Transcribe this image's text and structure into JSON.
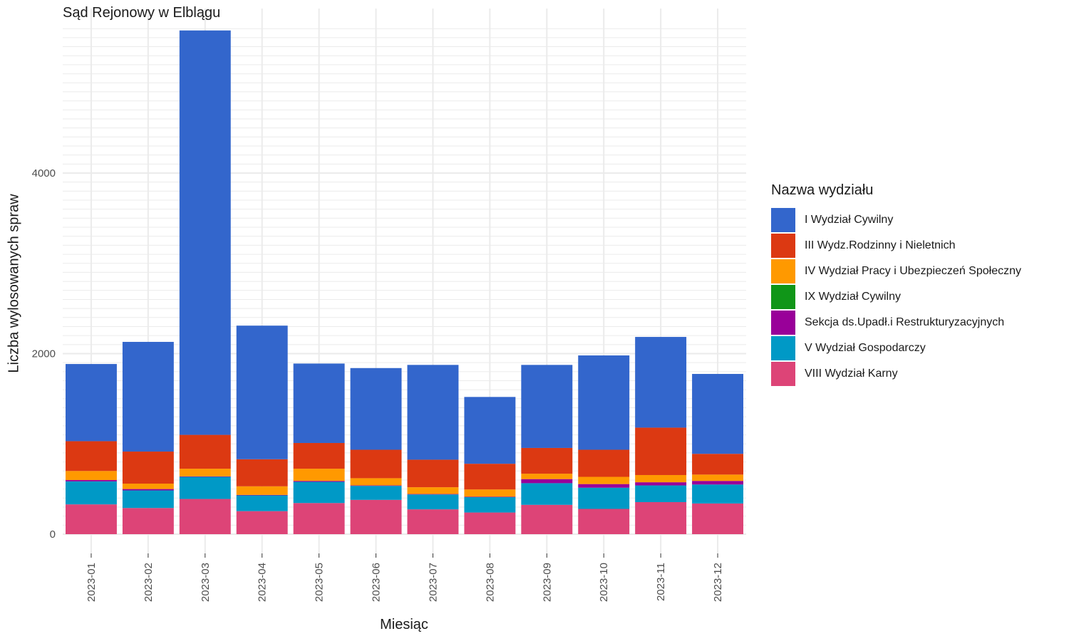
{
  "chart_data": {
    "type": "bar",
    "stacked": true,
    "title": "Sąd Rejonowy w Elblągu",
    "xlabel": "Miesiąc",
    "ylabel": "Liczba wylosowanych spraw",
    "ylim": [
      0,
      5600
    ],
    "yticks": [
      0,
      2000,
      4000
    ],
    "grid": true,
    "legend_title": "Nazwa wydziału",
    "legend_position": "right",
    "categories": [
      "2023-01",
      "2023-02",
      "2023-03",
      "2023-04",
      "2023-05",
      "2023-06",
      "2023-07",
      "2023-08",
      "2023-09",
      "2023-10",
      "2023-11",
      "2023-12"
    ],
    "series": [
      {
        "name": "VIII Wydział Karny",
        "color": "#DD4477",
        "values": [
          330,
          290,
          390,
          255,
          345,
          380,
          275,
          240,
          325,
          280,
          355,
          340
        ]
      },
      {
        "name": "V Wydział Gospodarczy",
        "color": "#0099C6",
        "values": [
          255,
          195,
          245,
          175,
          235,
          155,
          165,
          170,
          240,
          235,
          185,
          210
        ]
      },
      {
        "name": "Sekcja ds.Upadł.i Restrukturyzacyjnych",
        "color": "#990099",
        "values": [
          15,
          15,
          5,
          5,
          10,
          5,
          5,
          5,
          45,
          40,
          35,
          40
        ]
      },
      {
        "name": "IX Wydział Cywilny",
        "color": "#109618",
        "values": [
          0,
          0,
          0,
          0,
          0,
          0,
          0,
          0,
          0,
          0,
          0,
          0
        ]
      },
      {
        "name": "IV Wydział Pracy i Ubezpieczeń Społeczny",
        "color": "#FF9900",
        "values": [
          100,
          60,
          85,
          95,
          135,
          80,
          75,
          80,
          60,
          80,
          80,
          70
        ]
      },
      {
        "name": "III Wydz.Rodzinny i Nieletnich",
        "color": "#DC3912",
        "values": [
          330,
          355,
          375,
          300,
          285,
          315,
          305,
          285,
          285,
          300,
          525,
          230
        ]
      },
      {
        "name": "I Wydział Cywilny",
        "color": "#3366CC",
        "values": [
          855,
          1215,
          4480,
          1480,
          880,
          905,
          1050,
          740,
          920,
          1045,
          1005,
          885
        ]
      }
    ]
  }
}
